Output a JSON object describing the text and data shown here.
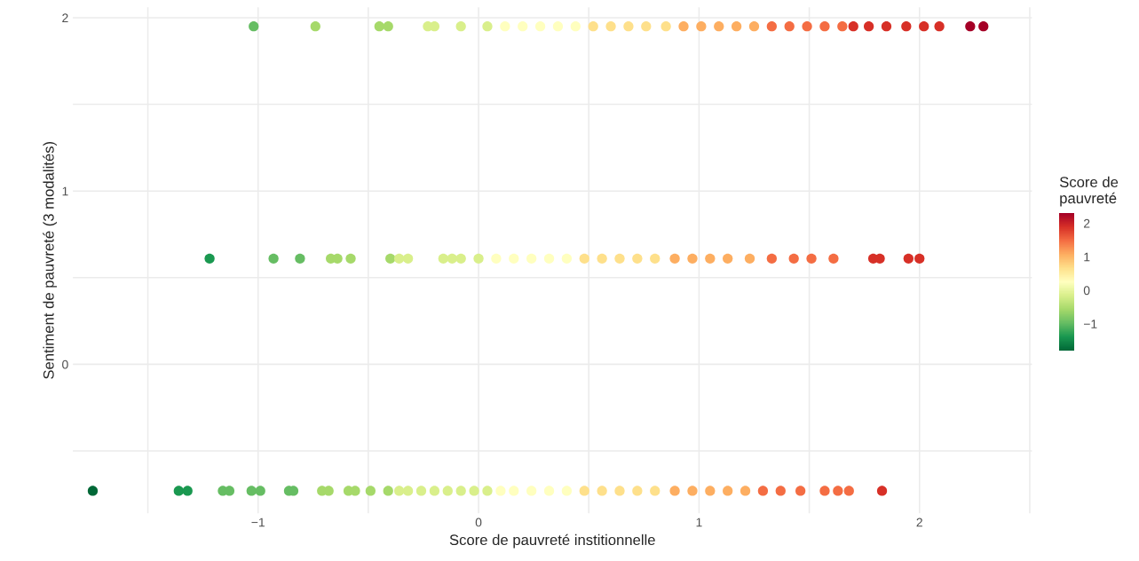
{
  "chart_data": {
    "type": "scatter",
    "xlabel": "Score de pauvreté institionnelle",
    "ylabel": "Sentiment de pauvreté (3 modalités)",
    "clabel": "Score de\npauvreté",
    "xlim": [
      -1.84,
      2.51
    ],
    "ylim": [
      -0.86,
      2.06
    ],
    "xticks": [
      {
        "value": -1.5,
        "label": null
      },
      {
        "value": -1,
        "label": "−1"
      },
      {
        "value": -0.5,
        "label": null
      },
      0,
      {
        "value": 0.5,
        "label": null
      },
      1,
      {
        "value": 1.5,
        "label": null
      },
      2,
      {
        "value": 2.5,
        "label": null
      }
    ],
    "yticks": [
      {
        "value": -0.5,
        "label": null
      },
      0,
      {
        "value": 0.5,
        "label": null
      },
      1,
      {
        "value": 1.5,
        "label": null
      },
      2
    ],
    "clim": [
      -1.8,
      2.3
    ],
    "cticks": [
      {
        "value": -1,
        "label": "−1"
      },
      0,
      1,
      2
    ],
    "grid": true,
    "marker": "circle",
    "series": [
      {
        "x": [
          -1.02,
          -0.74,
          -0.45,
          -0.41,
          -0.23,
          -0.2,
          -0.08,
          0.04,
          0.12,
          0.2,
          0.28,
          0.36,
          0.44,
          0.52,
          0.6,
          0.68,
          0.76,
          0.85,
          0.93,
          1.01,
          1.09,
          1.17,
          1.25,
          1.33,
          1.41,
          1.49,
          1.57,
          1.65,
          1.7,
          1.77,
          1.85,
          1.94,
          2.02,
          2.09,
          2.23,
          2.29
        ],
        "values": [
          1.95,
          1.95,
          1.95,
          1.95,
          1.95,
          1.95,
          1.95,
          1.95,
          1.95,
          1.95,
          1.95,
          1.95,
          1.95,
          1.95,
          1.95,
          1.95,
          1.95,
          1.95,
          1.95,
          1.95,
          1.95,
          1.95,
          1.95,
          1.95,
          1.95,
          1.95,
          1.95,
          1.95,
          1.95,
          1.95,
          1.95,
          1.95,
          1.95,
          1.95,
          1.95,
          1.95
        ],
        "colors": [
          "#66bd63",
          "#a6d96a",
          "#a6d96a",
          "#a6d96a",
          "#d9ef8b",
          "#d9ef8b",
          "#d9ef8b",
          "#d9ef8b",
          "#ffffbf",
          "#ffffbf",
          "#ffffbf",
          "#ffffbf",
          "#ffffbf",
          "#fee08b",
          "#fee08b",
          "#fee08b",
          "#fee08b",
          "#fee08b",
          "#fdae61",
          "#fdae61",
          "#fdae61",
          "#fdae61",
          "#fdae61",
          "#f46d43",
          "#f46d43",
          "#f46d43",
          "#f46d43",
          "#f46d43",
          "#d73027",
          "#d73027",
          "#d73027",
          "#d73027",
          "#d73027",
          "#d73027",
          "#a50026",
          "#a50026"
        ]
      },
      {
        "x": [
          -1.22,
          -0.93,
          -0.81,
          -0.67,
          -0.64,
          -0.58,
          -0.4,
          -0.36,
          -0.32,
          -0.16,
          -0.12,
          -0.08,
          0.0,
          0.08,
          0.16,
          0.24,
          0.32,
          0.4,
          0.48,
          0.56,
          0.64,
          0.72,
          0.8,
          0.89,
          0.97,
          1.05,
          1.13,
          1.23,
          1.33,
          1.43,
          1.51,
          1.61,
          1.79,
          1.82,
          1.95,
          2.0
        ],
        "values": [
          0.61,
          0.61,
          0.61,
          0.61,
          0.61,
          0.61,
          0.61,
          0.61,
          0.61,
          0.61,
          0.61,
          0.61,
          0.61,
          0.61,
          0.61,
          0.61,
          0.61,
          0.61,
          0.61,
          0.61,
          0.61,
          0.61,
          0.61,
          0.61,
          0.61,
          0.61,
          0.61,
          0.61,
          0.61,
          0.61,
          0.61,
          0.61,
          0.61,
          0.61,
          0.61,
          0.61
        ],
        "colors": [
          "#1a9850",
          "#66bd63",
          "#66bd63",
          "#a6d96a",
          "#a6d96a",
          "#a6d96a",
          "#a6d96a",
          "#d9ef8b",
          "#d9ef8b",
          "#d9ef8b",
          "#d9ef8b",
          "#d9ef8b",
          "#d9ef8b",
          "#ffffbf",
          "#ffffbf",
          "#ffffbf",
          "#ffffbf",
          "#ffffbf",
          "#fee08b",
          "#fee08b",
          "#fee08b",
          "#fee08b",
          "#fee08b",
          "#fdae61",
          "#fdae61",
          "#fdae61",
          "#fdae61",
          "#fdae61",
          "#f46d43",
          "#f46d43",
          "#f46d43",
          "#f46d43",
          "#d73027",
          "#d73027",
          "#d73027",
          "#d73027"
        ]
      },
      {
        "x": [
          -1.75,
          -1.36,
          -1.32,
          -1.16,
          -1.13,
          -1.03,
          -0.99,
          -0.86,
          -0.84,
          -0.71,
          -0.68,
          -0.59,
          -0.56,
          -0.49,
          -0.41,
          -0.36,
          -0.32,
          -0.26,
          -0.2,
          -0.14,
          -0.08,
          -0.02,
          0.04,
          0.1,
          0.16,
          0.24,
          0.32,
          0.4,
          0.48,
          0.56,
          0.64,
          0.72,
          0.8,
          0.89,
          0.97,
          1.05,
          1.13,
          1.21,
          1.29,
          1.37,
          1.46,
          1.57,
          1.63,
          1.68,
          1.83
        ],
        "values": [
          -0.73,
          -0.73,
          -0.73,
          -0.73,
          -0.73,
          -0.73,
          -0.73,
          -0.73,
          -0.73,
          -0.73,
          -0.73,
          -0.73,
          -0.73,
          -0.73,
          -0.73,
          -0.73,
          -0.73,
          -0.73,
          -0.73,
          -0.73,
          -0.73,
          -0.73,
          -0.73,
          -0.73,
          -0.73,
          -0.73,
          -0.73,
          -0.73,
          -0.73,
          -0.73,
          -0.73,
          -0.73,
          -0.73,
          -0.73,
          -0.73,
          -0.73,
          -0.73,
          -0.73,
          -0.73,
          -0.73,
          -0.73,
          -0.73,
          -0.73,
          -0.73,
          -0.73
        ],
        "colors": [
          "#006837",
          "#1a9850",
          "#1a9850",
          "#66bd63",
          "#66bd63",
          "#66bd63",
          "#66bd63",
          "#66bd63",
          "#66bd63",
          "#a6d96a",
          "#a6d96a",
          "#a6d96a",
          "#a6d96a",
          "#a6d96a",
          "#a6d96a",
          "#d9ef8b",
          "#d9ef8b",
          "#d9ef8b",
          "#d9ef8b",
          "#d9ef8b",
          "#d9ef8b",
          "#d9ef8b",
          "#d9ef8b",
          "#ffffbf",
          "#ffffbf",
          "#ffffbf",
          "#ffffbf",
          "#ffffbf",
          "#fee08b",
          "#fee08b",
          "#fee08b",
          "#fee08b",
          "#fee08b",
          "#fdae61",
          "#fdae61",
          "#fdae61",
          "#fdae61",
          "#fdae61",
          "#f46d43",
          "#f46d43",
          "#f46d43",
          "#f46d43",
          "#f46d43",
          "#f46d43",
          "#d73027"
        ]
      }
    ]
  }
}
